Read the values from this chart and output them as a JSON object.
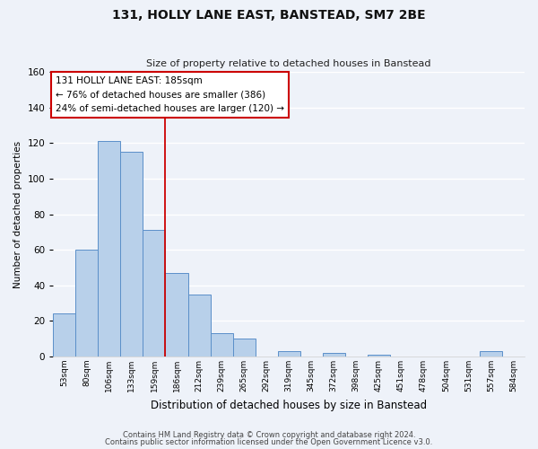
{
  "title": "131, HOLLY LANE EAST, BANSTEAD, SM7 2BE",
  "subtitle": "Size of property relative to detached houses in Banstead",
  "xlabel": "Distribution of detached houses by size in Banstead",
  "ylabel": "Number of detached properties",
  "bar_labels": [
    "53sqm",
    "80sqm",
    "106sqm",
    "133sqm",
    "159sqm",
    "186sqm",
    "212sqm",
    "239sqm",
    "265sqm",
    "292sqm",
    "319sqm",
    "345sqm",
    "372sqm",
    "398sqm",
    "425sqm",
    "451sqm",
    "478sqm",
    "504sqm",
    "531sqm",
    "557sqm",
    "584sqm"
  ],
  "bar_values": [
    24,
    60,
    121,
    115,
    71,
    47,
    35,
    13,
    10,
    0,
    3,
    0,
    2,
    0,
    1,
    0,
    0,
    0,
    0,
    3,
    0
  ],
  "bar_color": "#b8d0ea",
  "bar_edge_color": "#5b8fc9",
  "background_color": "#eef2f9",
  "grid_color": "#ffffff",
  "marker_label_index": 5,
  "marker_color": "#cc0000",
  "ylim": [
    0,
    160
  ],
  "yticks": [
    0,
    20,
    40,
    60,
    80,
    100,
    120,
    140,
    160
  ],
  "annotation_title": "131 HOLLY LANE EAST: 185sqm",
  "annotation_line1": "← 76% of detached houses are smaller (386)",
  "annotation_line2": "24% of semi-detached houses are larger (120) →",
  "footnote1": "Contains HM Land Registry data © Crown copyright and database right 2024.",
  "footnote2": "Contains public sector information licensed under the Open Government Licence v3.0."
}
